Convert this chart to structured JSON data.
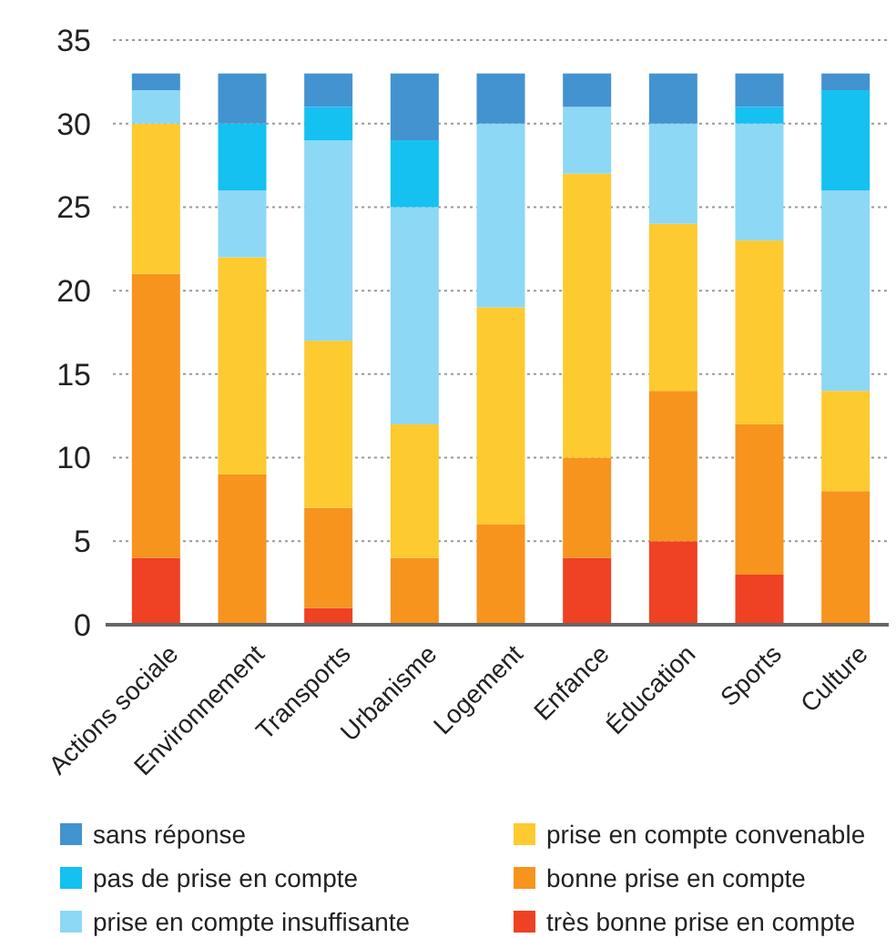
{
  "chart_data": {
    "type": "bar",
    "stacked": true,
    "categories": [
      "Actions sociale",
      "Environnement",
      "Transports",
      "Urbanisme",
      "Logement",
      "Enfance",
      "Éducation",
      "Sports",
      "Culture"
    ],
    "series": [
      {
        "name": "très bonne prise en compte",
        "color": "#ef4123",
        "values": [
          4,
          0,
          1,
          0,
          0,
          4,
          5,
          3,
          0
        ]
      },
      {
        "name": "bonne prise en compte",
        "color": "#f7941d",
        "values": [
          17,
          9,
          6,
          4,
          6,
          6,
          9,
          9,
          8
        ]
      },
      {
        "name": "prise en compte convenable",
        "color": "#fdca30",
        "values": [
          9,
          13,
          10,
          8,
          13,
          17,
          10,
          11,
          6
        ]
      },
      {
        "name": "prise en compte insuffisante",
        "color": "#8dd8f5",
        "values": [
          2,
          4,
          12,
          13,
          11,
          4,
          6,
          7,
          12
        ]
      },
      {
        "name": "pas de prise en compte",
        "color": "#14c1f1",
        "values": [
          0,
          4,
          2,
          4,
          0,
          0,
          0,
          1,
          6
        ]
      },
      {
        "name": "sans réponse",
        "color": "#4393d0",
        "values": [
          1,
          3,
          2,
          4,
          3,
          2,
          3,
          2,
          1
        ]
      }
    ],
    "ylim": [
      0,
      35
    ],
    "yticks": [
      0,
      5,
      10,
      15,
      20,
      25,
      30,
      35
    ],
    "grid": "y",
    "legend": "bottom"
  }
}
